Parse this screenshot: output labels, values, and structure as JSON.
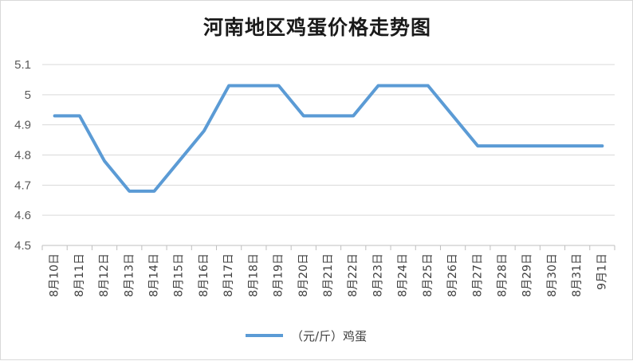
{
  "chart_data": {
    "type": "line",
    "title": "河南地区鸡蛋价格走势图",
    "xlabel": "",
    "ylabel": "",
    "ylim": [
      4.5,
      5.1
    ],
    "yticks": [
      "4.5",
      "4.6",
      "4.7",
      "4.8",
      "4.9",
      "5",
      "5.1"
    ],
    "grid": true,
    "legend_position": "bottom",
    "categories": [
      "8月10日",
      "8月11日",
      "8月12日",
      "8月13日",
      "8月14日",
      "8月15日",
      "8月16日",
      "8月17日",
      "8月18日",
      "8月19日",
      "8月20日",
      "8月21日",
      "8月22日",
      "8月23日",
      "8月24日",
      "8月25日",
      "8月26日",
      "8月27日",
      "8月28日",
      "8月29日",
      "8月30日",
      "8月31日",
      "9月1日"
    ],
    "series": [
      {
        "name": "（元/斤）鸡蛋",
        "color": "#5b9bd5",
        "values": [
          4.93,
          4.93,
          4.78,
          4.68,
          4.68,
          4.78,
          4.88,
          5.03,
          5.03,
          5.03,
          4.93,
          4.93,
          4.93,
          5.03,
          5.03,
          5.03,
          4.93,
          4.83,
          4.83,
          4.83,
          4.83,
          4.83,
          4.83
        ]
      }
    ]
  }
}
